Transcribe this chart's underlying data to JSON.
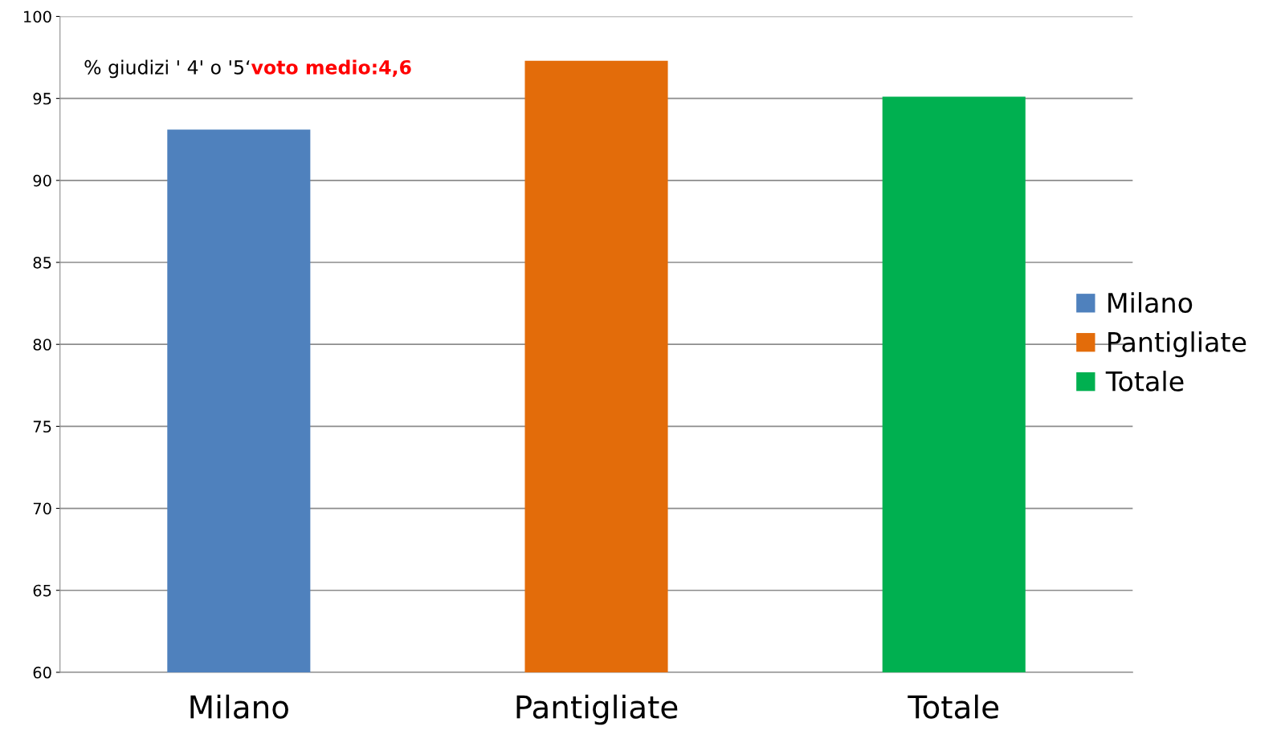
{
  "chart_data": {
    "type": "bar",
    "title": "% giudizi ' 4' o '5‘",
    "annotations": [
      "voto medio:4,6"
    ],
    "categories": [
      "Milano",
      "Pantigliate",
      "Totale"
    ],
    "series": [
      {
        "name": "Milano",
        "color": "#4f81bd",
        "values": [
          93.1,
          null,
          null
        ]
      },
      {
        "name": "Pantigliate",
        "color": "#e36c0a",
        "values": [
          null,
          97.3,
          null
        ]
      },
      {
        "name": "Totale",
        "color": "#00b050",
        "values": [
          null,
          null,
          95.1
        ]
      }
    ],
    "ylim": [
      60,
      100
    ],
    "yticks": [
      60,
      65,
      70,
      75,
      80,
      85,
      90,
      95,
      100
    ],
    "grid": "y",
    "legend": "right"
  }
}
